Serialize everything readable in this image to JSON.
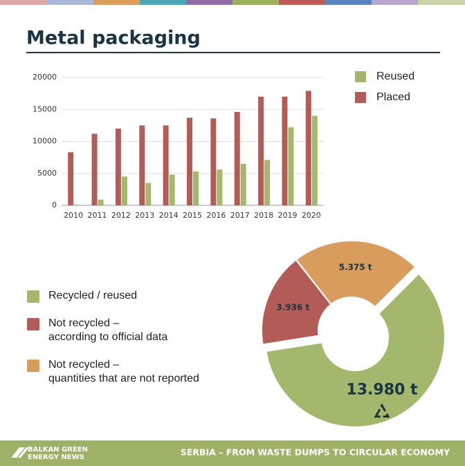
{
  "title": "Metal packaging",
  "chart_data": [
    {
      "type": "bar",
      "categories": [
        "2010",
        "2011",
        "2012",
        "2013",
        "2014",
        "2015",
        "2016",
        "2017",
        "2018",
        "2019",
        "2020"
      ],
      "series": [
        {
          "name": "Reused",
          "color": "#a3b86c",
          "values": [
            100,
            900,
            4500,
            3500,
            4800,
            5300,
            5600,
            6500,
            7100,
            12200,
            14000
          ]
        },
        {
          "name": "Placed",
          "color": "#b35c57",
          "values": [
            8300,
            11200,
            12000,
            12500,
            12500,
            13700,
            13600,
            14600,
            17000,
            17000,
            17900
          ]
        }
      ],
      "ylim": [
        0,
        20000
      ],
      "yticks": [
        0,
        5000,
        10000,
        15000,
        20000
      ],
      "grid": true,
      "legend": "top-right"
    },
    {
      "type": "pie",
      "categories": [
        "Recycled / reused",
        "Not recycled –\naccording to official data",
        "Not recycled –\nquantities that are not reported"
      ],
      "values": [
        13980,
        3936,
        5375
      ],
      "value_labels": [
        "13.980 t",
        "3.936 t",
        "5.375 t"
      ],
      "colors": [
        "#a3b86c",
        "#b35c57",
        "#d89c5c"
      ],
      "donut": true,
      "legend": "left"
    }
  ],
  "footer": {
    "logo": [
      "BALKAN GREEN",
      "ENERGY NEWS"
    ],
    "text": "SERBIA – FROM WASTE DUMPS TO CIRCULAR ECONOMY"
  }
}
